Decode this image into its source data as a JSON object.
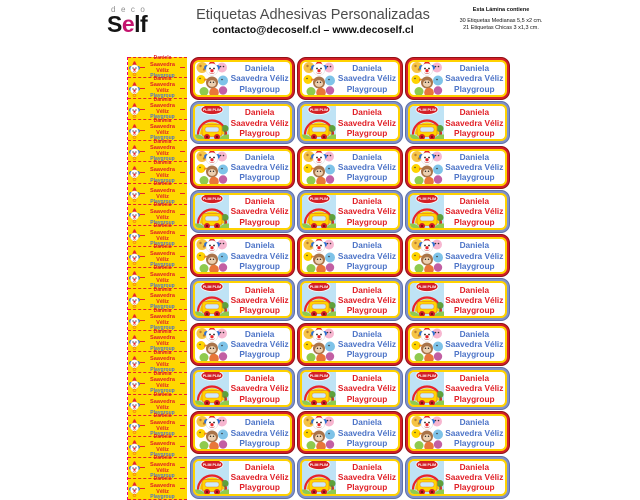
{
  "header": {
    "logo_deco": "deco",
    "logo_self_s": "S",
    "logo_self_e": "e",
    "logo_self_rest": "lf",
    "title": "Etiquetas Adhesivas Personalizadas",
    "contact": "contacto@decoself.cl – www.decoself.cl",
    "sheet_info": {
      "line1": "Esta Lámina contiene",
      "line2": "30 Etiquetas Medianas 5,5 x2 cm.",
      "line3": "21 Etiquetas Chicas 3 x1,3 cm."
    }
  },
  "label_text": {
    "line1": "Daniela",
    "line2": "Saavedra Véliz",
    "line3": "Playgroup"
  },
  "bus_logo_text": "PLIM PLIM",
  "grid": {
    "medium_rows": 10,
    "medium_cols": 3,
    "small_count": 21,
    "row_pattern": [
      "red",
      "blue"
    ]
  },
  "icons": {
    "medium_red_art": "plim-plim-characters-illustration",
    "medium_blue_art": "plim-plim-bus-rainbow-illustration",
    "small_art": "plim-plim-clown-icon"
  },
  "colors": {
    "red": "#d31f26",
    "red_dark": "#921016",
    "blue": "#8092c9",
    "blue_dark": "#5f70a9",
    "yellow": "#ffd200",
    "text_blue": "#4d74c7",
    "text_red": "#e01f26",
    "small_bg": "#ffd800",
    "dash_red": "#e8232a",
    "trim_magenta": "#e6007e",
    "logo_magenta": "#c4146e"
  }
}
